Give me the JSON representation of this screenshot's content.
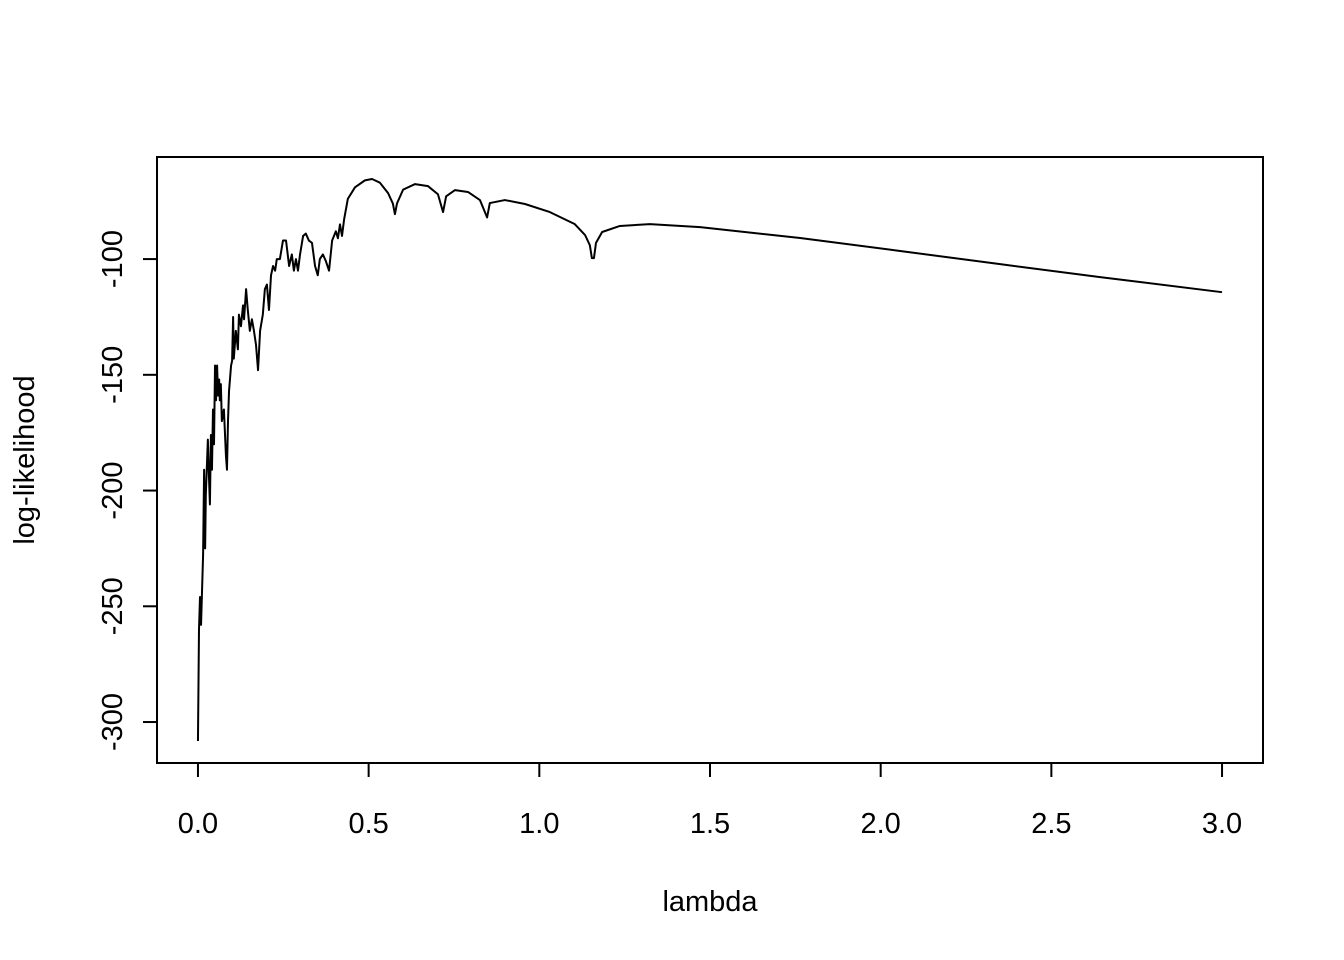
{
  "chart_data": {
    "type": "line",
    "xlabel": "lambda",
    "ylabel": "log-likelihood",
    "xlim": [
      -0.12,
      3.12
    ],
    "ylim": [
      -317.7,
      -55.9
    ],
    "xticks": [
      {
        "value": 0,
        "label": "0.0"
      },
      {
        "value": 0.5,
        "label": "0.5"
      },
      {
        "value": 1,
        "label": "1.0"
      },
      {
        "value": 1.5,
        "label": "1.5"
      },
      {
        "value": 2,
        "label": "2.0"
      },
      {
        "value": 2.5,
        "label": "2.5"
      },
      {
        "value": 3,
        "label": "3.0"
      }
    ],
    "yticks": [
      -300,
      -250,
      -200,
      -150,
      -100
    ],
    "grid": false,
    "series": [
      {
        "color": "#000000",
        "x": [
          0,
          0.003,
          0.006,
          0.009,
          0.012,
          0.015,
          0.018,
          0.021,
          0.023,
          0.029,
          0.032,
          0.035,
          0.038,
          0.041,
          0.044,
          0.047,
          0.05,
          0.053,
          0.056,
          0.059,
          0.062,
          0.064,
          0.067,
          0.07,
          0.076,
          0.082,
          0.085,
          0.088,
          0.091,
          0.097,
          0.1,
          0.103,
          0.105,
          0.111,
          0.117,
          0.12,
          0.126,
          0.132,
          0.135,
          0.141,
          0.146,
          0.152,
          0.158,
          0.164,
          0.17,
          0.176,
          0.182,
          0.19,
          0.196,
          0.202,
          0.208,
          0.214,
          0.22,
          0.226,
          0.231,
          0.24,
          0.249,
          0.258,
          0.267,
          0.275,
          0.281,
          0.287,
          0.293,
          0.299,
          0.308,
          0.316,
          0.325,
          0.334,
          0.343,
          0.351,
          0.357,
          0.366,
          0.375,
          0.384,
          0.393,
          0.404,
          0.41,
          0.416,
          0.422,
          0.428,
          0.439,
          0.46,
          0.489,
          0.51,
          0.533,
          0.557,
          0.571,
          0.577,
          0.583,
          0.601,
          0.636,
          0.674,
          0.703,
          0.718,
          0.727,
          0.753,
          0.791,
          0.826,
          0.847,
          0.855,
          0.899,
          0.958,
          1.031,
          1.104,
          1.134,
          1.148,
          1.154,
          1.16,
          1.166,
          1.184,
          1.236,
          1.324,
          1.471,
          1.764,
          2.057,
          2.35,
          2.643,
          3.0
        ],
        "values": [
          -308.2,
          -260,
          -246,
          -258,
          -243,
          -228,
          -191,
          -225,
          -202,
          -178,
          -193,
          -206,
          -176,
          -191,
          -165,
          -180,
          -146,
          -161,
          -146,
          -159,
          -152,
          -161,
          -154,
          -170,
          -165,
          -185,
          -191,
          -170,
          -157,
          -146,
          -144,
          -125,
          -143,
          -131,
          -139,
          -124,
          -129,
          -120,
          -126,
          -113,
          -122,
          -131,
          -126,
          -131,
          -137,
          -148,
          -131,
          -124,
          -113,
          -111,
          -122,
          -107,
          -103,
          -105,
          -100,
          -100,
          -92,
          -92,
          -103,
          -98,
          -105,
          -100,
          -105,
          -98,
          -90,
          -89,
          -92,
          -93,
          -103,
          -107,
          -100,
          -98,
          -101,
          -105,
          -92,
          -88,
          -91,
          -85,
          -90,
          -83,
          -74,
          -69,
          -66,
          -65.4,
          -67,
          -71.5,
          -76,
          -80.6,
          -76,
          -70,
          -67.6,
          -68.5,
          -72,
          -79.7,
          -72.9,
          -70.2,
          -71,
          -74.5,
          -82,
          -75.8,
          -74.5,
          -76.2,
          -79.7,
          -84.9,
          -89.6,
          -94,
          -99.6,
          -99.6,
          -93,
          -88.3,
          -85.7,
          -84.9,
          -86.2,
          -90.9,
          -96.5,
          -102.2,
          -107.8,
          -114.3
        ]
      }
    ]
  }
}
